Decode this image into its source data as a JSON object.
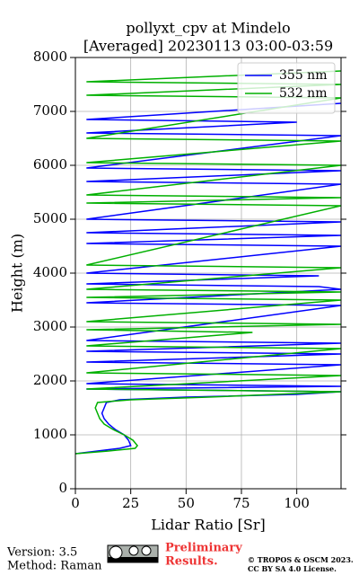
{
  "chart_data": {
    "type": "line",
    "title": "pollyxt_cpv at Mindelo",
    "subtitle": "[Averaged] 20230113 03:00-03:59",
    "xlabel": "Lidar Ratio [Sr]",
    "ylabel": "Height (m)",
    "xlim": [
      0,
      120
    ],
    "ylim": [
      0,
      8000
    ],
    "xticks": [
      0,
      25,
      50,
      75,
      100
    ],
    "yticks": [
      0,
      1000,
      2000,
      3000,
      4000,
      5000,
      6000,
      7000,
      8000
    ],
    "grid": true,
    "legend": "upper right",
    "series": [
      {
        "name": "355 nm",
        "color": "#0000ff",
        "heights": [
          650,
          700,
          750,
          800,
          900,
          1000,
          1100,
          1200,
          1300,
          1400,
          1500,
          1600,
          1650,
          1700,
          1750,
          1800,
          1850,
          1900,
          1950,
          2300,
          2350,
          2500,
          2550,
          2700,
          2750,
          3400,
          3450,
          3700,
          3750,
          3800,
          3950,
          4000,
          4500,
          4550,
          4700,
          4750,
          4950,
          5000,
          5650,
          5700,
          5900,
          5950,
          6550,
          6600,
          6800,
          6850,
          7150
        ],
        "values": [
          0,
          10,
          20,
          25,
          24,
          22,
          18,
          15,
          13,
          12,
          13,
          14,
          20,
          50,
          100,
          120,
          5,
          120,
          5,
          120,
          5,
          120,
          5,
          120,
          5,
          120,
          5,
          120,
          110,
          5,
          110,
          5,
          120,
          5,
          120,
          5,
          120,
          5,
          120,
          5,
          120,
          5,
          120,
          5,
          100,
          5,
          120
        ]
      },
      {
        "name": "532 nm",
        "color": "#00b000",
        "heights": [
          650,
          700,
          750,
          800,
          900,
          1000,
          1100,
          1200,
          1300,
          1400,
          1500,
          1600,
          1650,
          1700,
          1750,
          1800,
          1850,
          2100,
          2150,
          2600,
          2650,
          2900,
          2950,
          3050,
          3100,
          3500,
          3550,
          3650,
          3700,
          4100,
          4150,
          5250,
          5300,
          5400,
          5450,
          6000,
          6050,
          6450,
          6500,
          7250,
          7300,
          7500,
          7550,
          7750
        ],
        "values": [
          0,
          15,
          27,
          28,
          26,
          22,
          17,
          13,
          11,
          10,
          9,
          10,
          25,
          60,
          90,
          120,
          5,
          120,
          5,
          120,
          5,
          80,
          5,
          120,
          5,
          120,
          5,
          120,
          5,
          120,
          5,
          120,
          5,
          120,
          5,
          120,
          5,
          120,
          5,
          120,
          5,
          120,
          5,
          120
        ]
      }
    ]
  },
  "footer": {
    "version": "Version: 3.5",
    "method": "Method: Raman",
    "preliminary": [
      "Preliminary",
      "Results."
    ],
    "copyright": [
      "© TROPOS & OSCM 2023.",
      "CC BY SA 4.0 License."
    ]
  }
}
